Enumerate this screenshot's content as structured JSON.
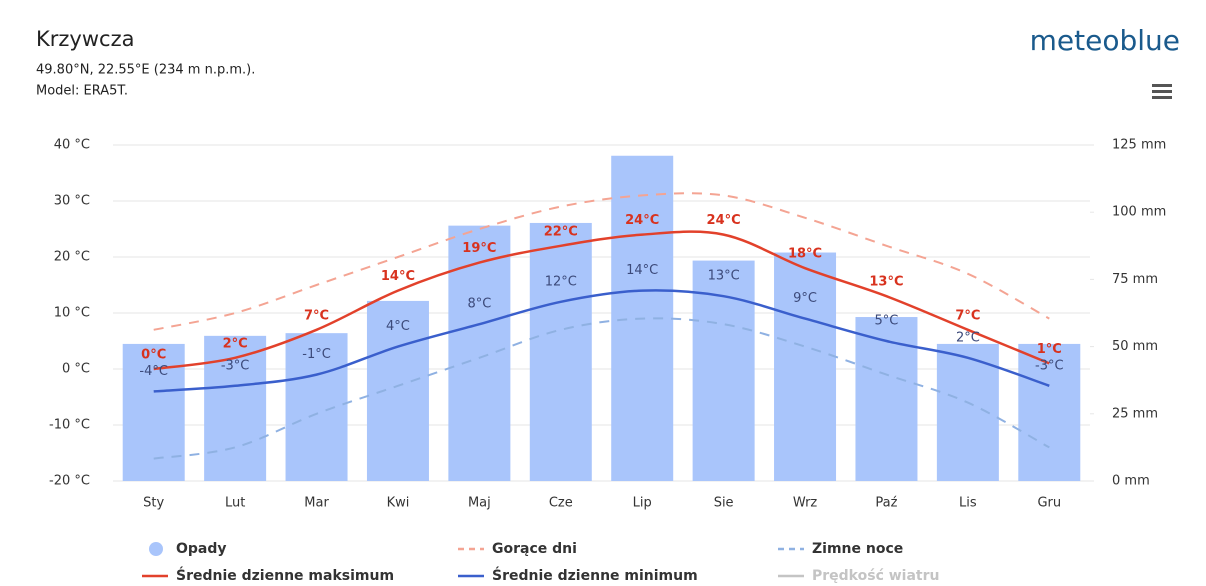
{
  "chart_data": {
    "type": "combo",
    "title": "Krzywcza",
    "subtitle": "49.80°N, 22.55°E (234 m n.p.m.).",
    "model": "Model: ERA5T.",
    "brand": "meteoblue",
    "categories": [
      "Sty",
      "Lut",
      "Mar",
      "Kwi",
      "Maj",
      "Cze",
      "Lip",
      "Sie",
      "Wrz",
      "Paź",
      "Lis",
      "Gru"
    ],
    "ylim": [
      -20,
      40
    ],
    "yticks": [
      {
        "value": -20,
        "label": "-20 °C"
      },
      {
        "value": -10,
        "label": "-10 °C"
      },
      {
        "value": 0,
        "label": "0 °C"
      },
      {
        "value": 10,
        "label": "10 °C"
      },
      {
        "value": 20,
        "label": "20 °C"
      },
      {
        "value": 30,
        "label": "30 °C"
      },
      {
        "value": 40,
        "label": "40 °C"
      }
    ],
    "y2lim": [
      0,
      125
    ],
    "y2ticks": [
      {
        "value": 0,
        "label": "0 mm"
      },
      {
        "value": 25,
        "label": "25 mm"
      },
      {
        "value": 50,
        "label": "50 mm"
      },
      {
        "value": 75,
        "label": "75 mm"
      },
      {
        "value": 100,
        "label": "100 mm"
      },
      {
        "value": 125,
        "label": "125 mm"
      }
    ],
    "grid": true,
    "series": [
      {
        "name": "Opady",
        "type": "bar",
        "axis": "y2",
        "color": "#a9c5fb",
        "values": [
          51,
          54,
          55,
          67,
          95,
          96,
          121,
          82,
          85,
          61,
          51,
          51
        ]
      },
      {
        "name": "Gorące dni",
        "type": "dashed",
        "color": "#f4a493",
        "values": [
          7,
          10,
          15,
          20,
          25,
          29,
          31,
          31,
          27,
          22,
          17,
          9
        ]
      },
      {
        "name": "Zimne noce",
        "type": "dashed",
        "color": "#8fb1e2",
        "values": [
          -16,
          -14,
          -8,
          -3,
          2,
          7,
          9,
          8,
          4,
          -1,
          -6,
          -14
        ]
      },
      {
        "name": "Średnie dzienne maksimum",
        "type": "line",
        "color": "#e2412b",
        "values": [
          0,
          2,
          7,
          14,
          19,
          22,
          24,
          24,
          18,
          13,
          7,
          1
        ],
        "value_labels": [
          "0°C",
          "2°C",
          "7°C",
          "14°C",
          "19°C",
          "22°C",
          "24°C",
          "24°C",
          "18°C",
          "13°C",
          "7°C",
          "1°C"
        ]
      },
      {
        "name": "Średnie dzienne minimum",
        "type": "line",
        "color": "#3a5fcc",
        "values": [
          -4,
          -3,
          -1,
          4,
          8,
          12,
          14,
          13,
          9,
          5,
          2,
          -3
        ],
        "value_labels": [
          "-4°C",
          "-3°C",
          "-1°C",
          "4°C",
          "8°C",
          "12°C",
          "14°C",
          "13°C",
          "9°C",
          "5°C",
          "2°C",
          "-3°C"
        ]
      }
    ],
    "legend_extra": [
      {
        "name": "Prędkość wiatru",
        "color": "#c4c4c4"
      }
    ]
  }
}
